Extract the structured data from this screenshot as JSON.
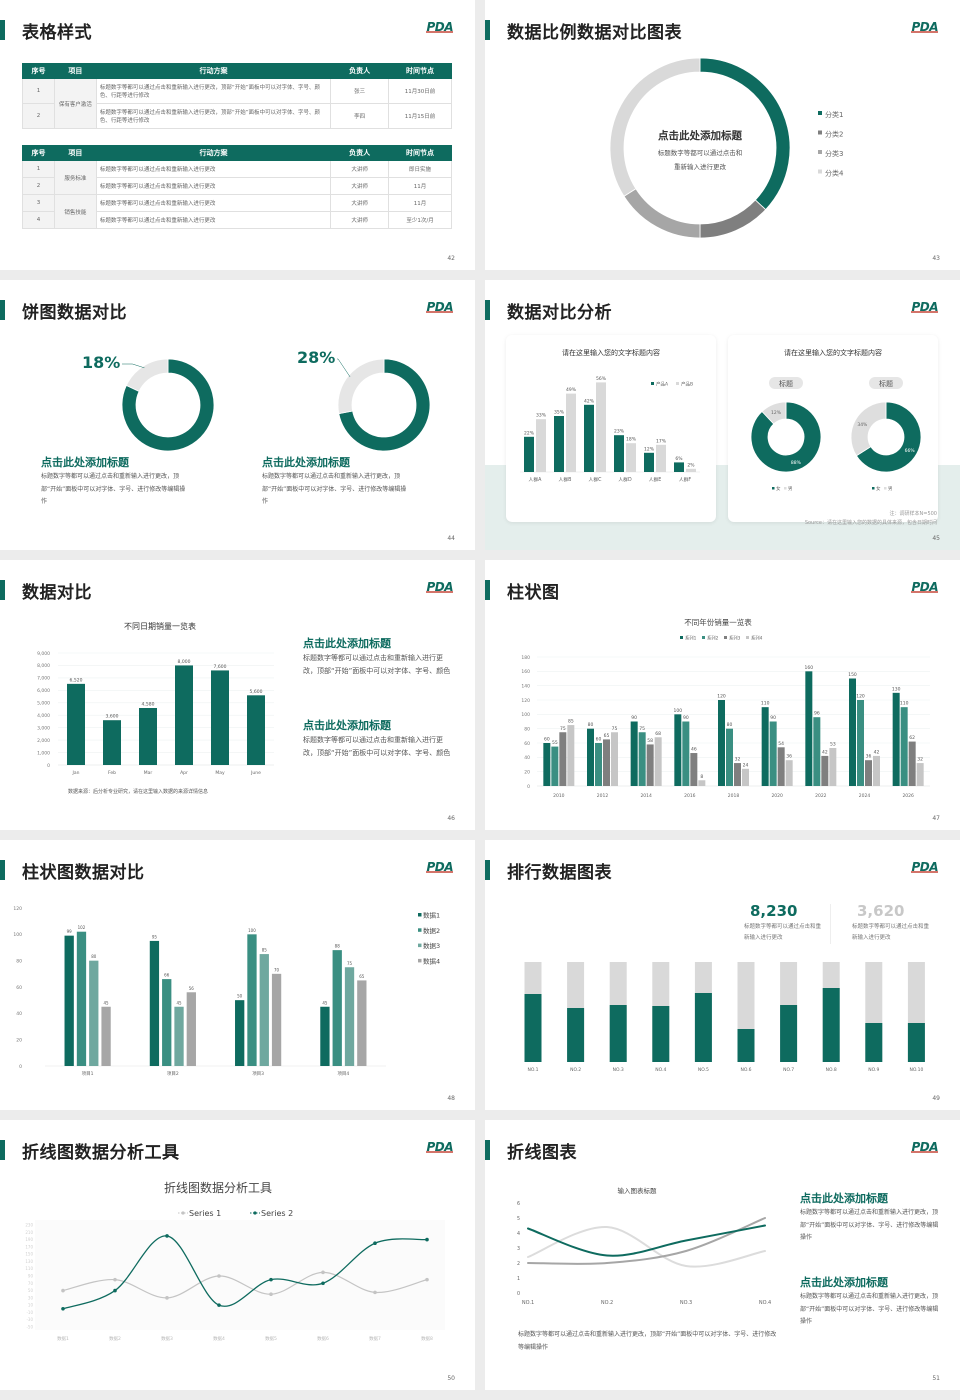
{
  "logo": "PDA",
  "colors": {
    "green": "#0e6b5f",
    "green2": "#3a8f82",
    "green3": "#6fa89f",
    "gray_dark": "#7f7f7f",
    "gray": "#a6a6a6",
    "gray_light": "#d9d9d9",
    "band": "#e4eeec"
  },
  "slides": [
    {
      "title": "表格样式",
      "page": "42"
    },
    {
      "title": "数据比例数据对比图表",
      "page": "43"
    },
    {
      "title": "饼图数据对比",
      "page": "44"
    },
    {
      "title": "数据对比分析",
      "page": "45"
    },
    {
      "title": "数据对比",
      "page": "46"
    },
    {
      "title": "柱状图",
      "page": "47"
    },
    {
      "title": "柱状图数据对比",
      "page": "48"
    },
    {
      "title": "排行数据图表",
      "page": "49"
    },
    {
      "title": "折线图数据分析工具",
      "page": "50"
    },
    {
      "title": "折线图表",
      "page": "51"
    }
  ],
  "tables": {
    "headers": [
      "序号",
      "项目",
      "行动方案",
      "负责人",
      "时间节点"
    ],
    "table1": [
      {
        "seq": "1",
        "group": "保有客户激活",
        "plan": "标题数字等都可以通过点击和重新输入进行更改，顶部“开始”面板中可以对字体、字号、颜色、行距等进行修改",
        "owner": "张三",
        "time": "11月30日前"
      },
      {
        "seq": "2",
        "group": "保有客户激活",
        "plan": "标题数字等都可以通过点击和重新输入进行更改，顶部“开始”面板中可以对字体、字号、颜色、行距等进行修改",
        "owner": "李四",
        "time": "11月15日前"
      }
    ],
    "table2": [
      {
        "seq": "1",
        "group": "服务标准",
        "plan": "标题数字等都可以通过点击和重新输入进行更改",
        "owner": "大讲师",
        "time": "即日实施"
      },
      {
        "seq": "2",
        "group": "服务标准",
        "plan": "标题数字等都可以通过点击和重新输入进行更改",
        "owner": "大讲师",
        "time": "11月"
      },
      {
        "seq": "3",
        "group": "销售技能",
        "plan": "标题数字等都可以通过点击和重新输入进行更改",
        "owner": "大讲师",
        "time": "11月"
      },
      {
        "seq": "4",
        "group": "销售技能",
        "plan": "标题数字等都可以通过点击和重新输入进行更改",
        "owner": "大讲师",
        "time": "至少1次/月"
      }
    ]
  },
  "slide43": {
    "center_title": "点击此处添加标题",
    "center_text": [
      "标题数字等都可以通过点击和",
      "重新输入进行更改"
    ]
  },
  "slide44": {
    "items": [
      {
        "heading": "点击此处添加标题",
        "text": "标题数字等都可以通过点击和重新输入进行更改，顶部“开始”面板中可以对字体、字号、进行修改等编辑操作"
      },
      {
        "heading": "点击此处添加标题",
        "text": "标题数字等都可以通过点击和重新输入进行更改，顶部“开始”面板中可以对字体、字号、进行修改等编辑操作"
      }
    ]
  },
  "slide45": {
    "card_title": "请在这里输入您的文字标题内容",
    "pill": "标题",
    "note": "注：调研样本N=500",
    "source": "Source：请在这里输入您的数据的具体来源，包含日期时间"
  },
  "slide46": {
    "source": "数据来源：后分析专业研究，请在这里输入数据的来源详情信息",
    "items": [
      {
        "heading": "点击此处添加标题",
        "text": "标题数字等都可以通过点击和重新输入进行更改，顶部“开始”面板中可以对字体、字号、颜色"
      },
      {
        "heading": "点击此处添加标题",
        "text": "标题数字等都可以通过点击和重新输入进行更改，顶部“开始”面板中可以对字体、字号、颜色"
      }
    ]
  },
  "slide49": {
    "stats": [
      {
        "value": "8,230",
        "text": "标题数字等都可以通过点击和重新输入进行更改"
      },
      {
        "value": "3,620",
        "text": "标题数字等都可以通过点击和重新输入进行更改"
      }
    ]
  },
  "slide51": {
    "bottom_text": "标题数字等都可以通过点击和重新输入进行更改，顶部“开始”面板中可以对字体、字号、进行修改等编辑操作",
    "items": [
      {
        "heading": "点击此处添加标题",
        "text": "标题数字等都可以通过点击和重新输入进行更改，顶部“开始”面板中可以对字体、字号、进行修改等编辑操作"
      },
      {
        "heading": "点击此处添加标题",
        "text": "标题数字等都可以通过点击和重新输入进行更改，顶部“开始”面板中可以对字体、字号、进行修改等编辑操作"
      }
    ]
  },
  "chart_data": [
    {
      "id": "s43",
      "type": "pie",
      "donut": true,
      "categories": [
        "分类1",
        "分类2",
        "分类3",
        "分类4"
      ],
      "values": [
        0.37,
        0.13,
        0.16,
        0.34
      ],
      "legend": "right"
    },
    {
      "id": "s44a",
      "type": "pie",
      "donut": true,
      "values": [
        0.82,
        0.18
      ],
      "label": "18%"
    },
    {
      "id": "s44b",
      "type": "pie",
      "donut": true,
      "values": [
        0.72,
        0.28
      ],
      "label": "28%"
    },
    {
      "id": "s45bar",
      "type": "bar",
      "title": "请在这里输入您的文字标题内容",
      "categories": [
        "人群A",
        "人群B",
        "人群C",
        "人群D",
        "人群E",
        "人群F"
      ],
      "series": [
        {
          "name": "产品A",
          "values": [
            22,
            35,
            42,
            23,
            12,
            6
          ]
        },
        {
          "name": "产品B",
          "values": [
            33,
            49,
            56,
            18,
            17,
            2
          ]
        }
      ],
      "unit": "%",
      "legend": "top-right"
    },
    {
      "id": "s45pie1",
      "type": "pie",
      "donut": true,
      "categories": [
        "女",
        "男"
      ],
      "values": [
        88,
        12
      ],
      "unit": "%"
    },
    {
      "id": "s45pie2",
      "type": "pie",
      "donut": true,
      "categories": [
        "女",
        "男"
      ],
      "values": [
        66,
        34
      ],
      "unit": "%"
    },
    {
      "id": "s46",
      "type": "bar",
      "title": "不同日期销量一览表",
      "categories": [
        "Jan",
        "Feb",
        "Mar",
        "Apr",
        "May",
        "June"
      ],
      "values": [
        6520,
        3600,
        4580,
        8000,
        7600,
        5600
      ],
      "ylim": [
        0,
        9000
      ],
      "yticks": [
        "0",
        "1,000",
        "2,000",
        "3,000",
        "4,000",
        "5,000",
        "6,000",
        "7,000",
        "8,000",
        "9,000"
      ],
      "grid": true
    },
    {
      "id": "s47",
      "type": "bar",
      "title": "不同年份销量一览表",
      "categories": [
        "2010",
        "2012",
        "2014",
        "2016",
        "2018",
        "2020",
        "2022",
        "2024",
        "2026"
      ],
      "series": [
        {
          "name": "系列1",
          "values": [
            60,
            80,
            90,
            100,
            120,
            110,
            160,
            150,
            130
          ]
        },
        {
          "name": "系列2",
          "values": [
            55,
            60,
            75,
            90,
            80,
            90,
            96,
            120,
            110
          ]
        },
        {
          "name": "系列3",
          "values": [
            75,
            65,
            58,
            46,
            32,
            54,
            42,
            36,
            62
          ]
        },
        {
          "name": "系列4",
          "values": [
            85,
            75,
            68,
            8,
            24,
            36,
            53,
            42,
            32
          ]
        }
      ],
      "ylim": [
        0,
        180
      ],
      "yticks": [
        "0",
        "20",
        "40",
        "60",
        "80",
        "100",
        "120",
        "140",
        "160",
        "180"
      ],
      "legend": "top"
    },
    {
      "id": "s48",
      "type": "bar",
      "categories": [
        "项目1",
        "项目2",
        "项目3",
        "项目4"
      ],
      "series": [
        {
          "name": "数据1",
          "values": [
            99,
            95,
            50,
            45
          ]
        },
        {
          "name": "数据2",
          "values": [
            102,
            66,
            100,
            88
          ]
        },
        {
          "name": "数据3",
          "values": [
            80,
            45,
            85,
            75
          ]
        },
        {
          "name": "数据4",
          "values": [
            45,
            56,
            70,
            65
          ]
        }
      ],
      "ylim": [
        0,
        120
      ],
      "yticks": [
        "0",
        "20",
        "40",
        "60",
        "80",
        "100",
        "120"
      ],
      "legend": "right"
    },
    {
      "id": "s49",
      "type": "bar",
      "stacked_percent": true,
      "categories": [
        "NO.1",
        "NO.2",
        "NO.3",
        "NO.4",
        "NO.5",
        "NO.6",
        "NO.7",
        "NO.8",
        "NO.9",
        "NO.10"
      ],
      "values": [
        0.68,
        0.54,
        0.57,
        0.56,
        0.69,
        0.33,
        0.57,
        0.74,
        0.39,
        0.39
      ]
    },
    {
      "id": "s50",
      "type": "line",
      "title": "折线图数据分析工具",
      "categories": [
        "数据1",
        "数据2",
        "数据3",
        "数据4",
        "数据5",
        "数据6",
        "数据7",
        "数据8"
      ],
      "series": [
        {
          "name": "Series 1",
          "values": [
            50,
            80,
            30,
            90,
            40,
            100,
            45,
            80
          ]
        },
        {
          "name": "Series 2",
          "values": [
            0,
            50,
            200,
            10,
            80,
            70,
            180,
            190
          ]
        }
      ],
      "ylim": [
        -50,
        230
      ],
      "yticks": [
        "-50",
        "-30",
        "-10",
        "10",
        "30",
        "50",
        "70",
        "90",
        "110",
        "130",
        "150",
        "170",
        "190",
        "210",
        "230"
      ],
      "legend": "top"
    },
    {
      "id": "s51",
      "type": "line",
      "title": "输入图表标题",
      "categories": [
        "NO.1",
        "NO.2",
        "NO.3",
        "NO.4"
      ],
      "series": [
        {
          "values": [
            4.3,
            2.5,
            3.5,
            4.5
          ]
        },
        {
          "values": [
            2.4,
            4.4,
            1.8,
            2.8
          ]
        },
        {
          "values": [
            2,
            2,
            2.8,
            5
          ]
        }
      ],
      "ylim": [
        0,
        6
      ],
      "yticks": [
        "0",
        "1",
        "2",
        "3",
        "4",
        "5",
        "6"
      ]
    }
  ]
}
